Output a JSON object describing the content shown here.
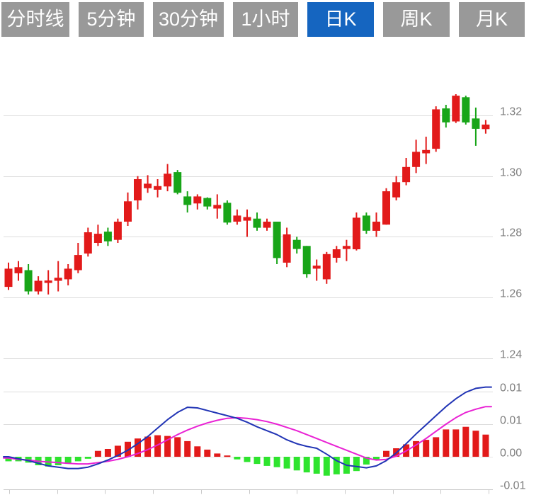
{
  "toolbar": {
    "tabs": [
      "分时线",
      "5分钟",
      "30分钟",
      "1小时",
      "日K",
      "周K",
      "月K"
    ],
    "active_index": 4,
    "active_color": "#1565c0",
    "inactive_color": "#999999"
  },
  "chart_data": {
    "type": "candlestick_with_macd",
    "title": "",
    "legend_position": "none",
    "grid": true,
    "x_axis": {
      "tick_count": 11,
      "labels_visible": false
    },
    "main_panel": {
      "ylabel": "price",
      "ylim": [
        1.238,
        1.332
      ],
      "y_ticks": [
        {
          "label": "1.32",
          "value": 1.32
        },
        {
          "label": "1.30",
          "value": 1.3
        },
        {
          "label": "1.28",
          "value": 1.28
        },
        {
          "label": "1.26",
          "value": 1.26
        },
        {
          "label": "1.24",
          "value": 1.24
        }
      ],
      "candles_ohlc": [
        [
          1.2635,
          1.2715,
          1.2625,
          1.2695
        ],
        [
          1.268,
          1.272,
          1.2655,
          1.27
        ],
        [
          1.269,
          1.271,
          1.261,
          1.262
        ],
        [
          1.262,
          1.267,
          1.261,
          1.2655
        ],
        [
          1.2648,
          1.269,
          1.261,
          1.2656
        ],
        [
          1.2655,
          1.272,
          1.262,
          1.2665
        ],
        [
          1.266,
          1.271,
          1.264,
          1.2695
        ],
        [
          1.269,
          1.278,
          1.268,
          1.274
        ],
        [
          1.2745,
          1.283,
          1.2735,
          1.2815
        ],
        [
          1.278,
          1.284,
          1.277,
          1.281
        ],
        [
          1.2817,
          1.283,
          1.277,
          1.2785
        ],
        [
          1.279,
          1.286,
          1.278,
          1.285
        ],
        [
          1.285,
          1.2946,
          1.2836,
          1.2917
        ],
        [
          1.292,
          1.3,
          1.289,
          1.299
        ],
        [
          1.296,
          1.3003,
          1.2945,
          1.2975
        ],
        [
          1.2955,
          1.299,
          1.293,
          1.2967
        ],
        [
          1.2966,
          1.304,
          1.295,
          1.3008
        ],
        [
          1.3013,
          1.302,
          1.294,
          1.2945
        ],
        [
          1.2933,
          1.295,
          1.288,
          1.2905
        ],
        [
          1.291,
          1.294,
          1.289,
          1.2933
        ],
        [
          1.2928,
          1.293,
          1.289,
          1.29
        ],
        [
          1.2893,
          1.294,
          1.286,
          1.2905
        ],
        [
          1.2912,
          1.292,
          1.284,
          1.2847
        ],
        [
          1.285,
          1.289,
          1.284,
          1.287
        ],
        [
          1.2853,
          1.289,
          1.28,
          1.2865
        ],
        [
          1.286,
          1.288,
          1.282,
          1.283
        ],
        [
          1.283,
          1.286,
          1.282,
          1.285
        ],
        [
          1.285,
          1.285,
          1.271,
          1.273
        ],
        [
          1.2715,
          1.283,
          1.27,
          1.2808
        ],
        [
          1.279,
          1.28,
          1.2745,
          1.276
        ],
        [
          1.277,
          1.277,
          1.2665,
          1.2677
        ],
        [
          1.2695,
          1.2725,
          1.2655,
          1.2705
        ],
        [
          1.266,
          1.275,
          1.2645,
          1.2743
        ],
        [
          1.2731,
          1.277,
          1.2715,
          1.2759
        ],
        [
          1.276,
          1.279,
          1.272,
          1.277
        ],
        [
          1.2759,
          1.288,
          1.2755,
          1.2863
        ],
        [
          1.287,
          1.288,
          1.281,
          1.282
        ],
        [
          1.282,
          1.288,
          1.28,
          1.285
        ],
        [
          1.284,
          1.296,
          1.284,
          1.295
        ],
        [
          1.293,
          1.3,
          1.292,
          1.298
        ],
        [
          1.298,
          1.306,
          1.297,
          1.303
        ],
        [
          1.303,
          1.312,
          1.301,
          1.308
        ],
        [
          1.3075,
          1.313,
          1.304,
          1.3086
        ],
        [
          1.309,
          1.323,
          1.308,
          1.322
        ],
        [
          1.3223,
          1.3235,
          1.316,
          1.3177
        ],
        [
          1.318,
          1.327,
          1.3175,
          1.3265
        ],
        [
          1.326,
          1.3265,
          1.317,
          1.3177
        ],
        [
          1.319,
          1.3226,
          1.31,
          1.3156
        ],
        [
          1.3155,
          1.3185,
          1.314,
          1.317
        ]
      ]
    },
    "sub_panel": {
      "ylabel": "MACD",
      "ylim": [
        -0.005,
        0.011
      ],
      "y_ticks": [
        {
          "label": "0.01",
          "value": 0.01
        },
        {
          "label": "0.01",
          "value": 0.005
        },
        {
          "label": "0.00",
          "value": 0.0
        },
        {
          "label": "-0.01",
          "value": -0.005
        }
      ],
      "histogram": [
        -0.0007,
        -0.0007,
        -0.0009,
        -0.0013,
        -0.0015,
        -0.0013,
        -0.0011,
        -0.0007,
        -0.0003,
        0.0009,
        0.0012,
        0.0017,
        0.0023,
        0.0028,
        0.0031,
        0.0033,
        0.0032,
        0.003,
        0.0024,
        0.0016,
        0.0011,
        0.0005,
        0.0002,
        -0.0004,
        -0.0008,
        -0.0011,
        -0.0014,
        -0.0016,
        -0.0018,
        -0.0021,
        -0.0024,
        -0.0026,
        -0.0029,
        -0.0027,
        -0.0026,
        -0.0022,
        -0.0012,
        -0.0005,
        0.0009,
        0.0013,
        0.0019,
        0.0024,
        0.0026,
        0.003,
        0.0042,
        0.0042,
        0.0046,
        0.004,
        0.0034
      ],
      "dif_line": [
        0.0,
        -0.0003,
        -0.0006,
        -0.001,
        -0.0014,
        -0.0016,
        -0.0018,
        -0.0018,
        -0.0016,
        -0.0011,
        -0.0005,
        0.0002,
        0.001,
        0.002,
        0.0031,
        0.0044,
        0.0057,
        0.0068,
        0.0076,
        0.0075,
        0.0071,
        0.0067,
        0.0063,
        0.0059,
        0.0053,
        0.0046,
        0.004,
        0.0034,
        0.0026,
        0.002,
        0.0016,
        0.0013,
        0.0004,
        -0.0006,
        -0.0013,
        -0.0015,
        -0.0017,
        -0.0014,
        -0.0006,
        0.0006,
        0.002,
        0.0035,
        0.0049,
        0.0063,
        0.0077,
        0.0089,
        0.0099,
        0.0105,
        0.0107
      ],
      "dea_line": [
        -0.0002,
        -0.0004,
        -0.0005,
        -0.0007,
        -0.0008,
        -0.0009,
        -0.001,
        -0.0011,
        -0.0011,
        -0.0009,
        -0.0007,
        -0.0004,
        0.0,
        0.0005,
        0.0011,
        0.0018,
        0.0026,
        0.0034,
        0.0041,
        0.0047,
        0.0052,
        0.0056,
        0.0059,
        0.006,
        0.0059,
        0.0057,
        0.0054,
        0.005,
        0.0045,
        0.004,
        0.0034,
        0.0028,
        0.0022,
        0.0016,
        0.001,
        0.0004,
        -0.0002,
        -0.0005,
        -0.0004,
        0.0001,
        0.0009,
        0.0018,
        0.0028,
        0.0039,
        0.005,
        0.006,
        0.0068,
        0.0073,
        0.0077
      ]
    },
    "colors": {
      "candle_up": "#e21a1a",
      "candle_down": "#18a518",
      "hist_up": "#e21a1a",
      "hist_down": "#2ee42e",
      "dif": "#2134b5",
      "dea": "#e922d4",
      "grid": "#dcdcdc",
      "zero_line": "#e6e6e6",
      "axis": "#c9c9c9",
      "label": "#7e7e7e"
    }
  }
}
